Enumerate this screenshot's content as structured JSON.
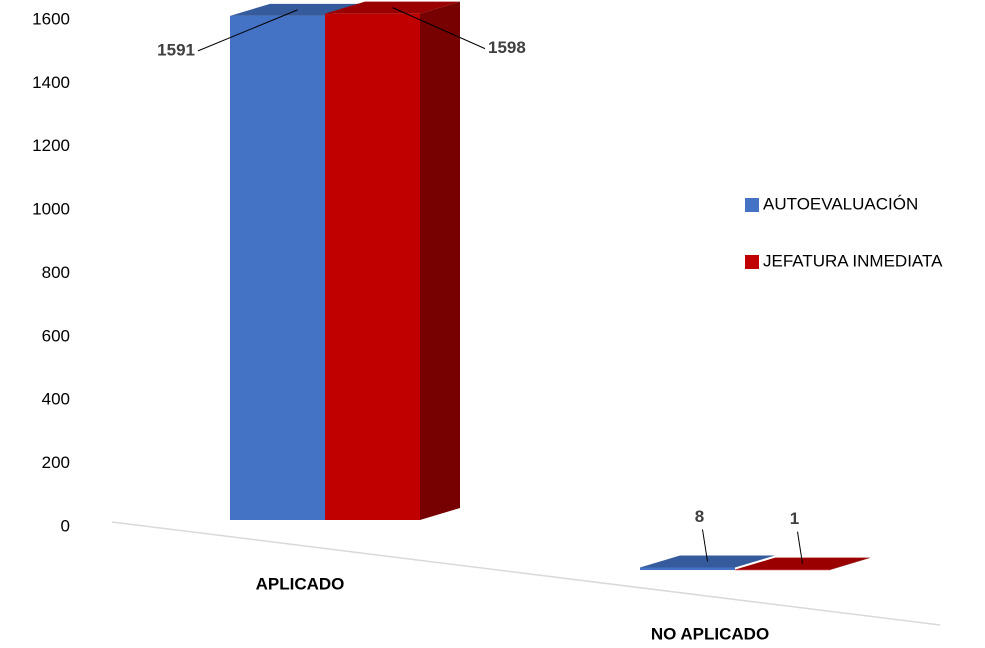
{
  "chart_data": {
    "type": "bar3d",
    "categories": [
      "APLICADO",
      "NO APLICADO"
    ],
    "series": [
      {
        "name": "AUTOEVALUACIÓN",
        "color": "#4472c4",
        "values": [
          1591,
          8
        ]
      },
      {
        "name": "JEFATURA INMEDIATA",
        "color": "#c00000",
        "values": [
          1598,
          1
        ]
      }
    ],
    "ylim": [
      0,
      1600
    ],
    "yticks": [
      0,
      200,
      400,
      600,
      800,
      1000,
      1200,
      1400,
      1600
    ],
    "legend": "right"
  }
}
